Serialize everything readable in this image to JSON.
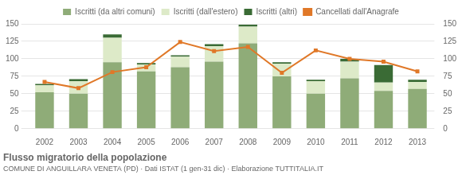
{
  "chart_data": {
    "type": "bar",
    "title": "Flusso migratorio della popolazione",
    "subtitle": "COMUNE DI ANGUILLARA VENETA (PD) · Dati ISTAT (1 gen-31 dic) · Elaborazione TUTTITALIA.IT",
    "categories": [
      "2002",
      "2003",
      "2004",
      "2005",
      "2006",
      "2007",
      "2008",
      "2009",
      "2010",
      "2011",
      "2012",
      "2013"
    ],
    "series": [
      {
        "name": "Iscritti (da altri comuni)",
        "color": "#8fac78",
        "values": [
          52,
          50,
          95,
          82,
          88,
          96,
          122,
          75,
          50,
          72,
          54,
          57
        ]
      },
      {
        "name": "Iscritti (dall'estero)",
        "color": "#ddeac8",
        "values": [
          10,
          18,
          35,
          10,
          15,
          22,
          24,
          18,
          18,
          24,
          12,
          10
        ]
      },
      {
        "name": "Iscritti (altri)",
        "color": "#3a6b35",
        "values": [
          2,
          3,
          5,
          2,
          2,
          3,
          3,
          2,
          2,
          4,
          25,
          3
        ]
      },
      {
        "name": "Cancellati dall'Anagrafe",
        "color": "#e07828",
        "type": "line",
        "marker": "square",
        "axis": "y2",
        "values": [
          67,
          58,
          81,
          88,
          124,
          111,
          117,
          80,
          112,
          100,
          96,
          82
        ]
      }
    ],
    "stacked": true,
    "ylim": [
      0,
      150
    ],
    "yticks": [
      0,
      25,
      50,
      75,
      100,
      125,
      150
    ],
    "y2lim": [
      0,
      150
    ],
    "y2ticks": [
      0,
      25,
      50,
      75,
      100,
      125,
      150
    ],
    "grid": true,
    "legend": "top"
  }
}
